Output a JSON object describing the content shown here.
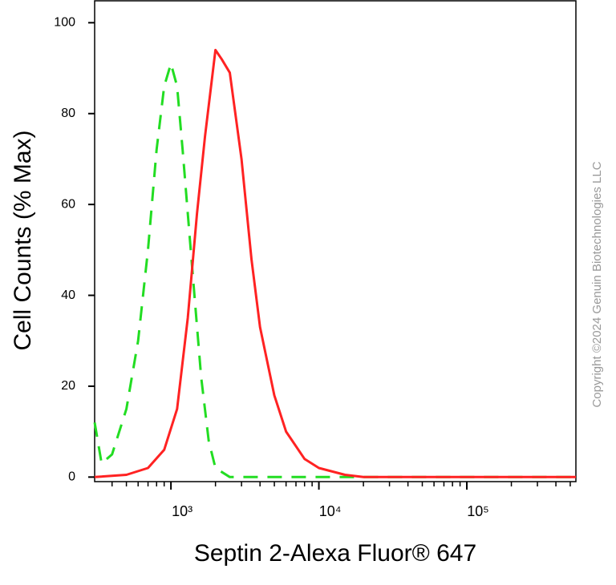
{
  "chart_data": {
    "type": "line",
    "y_label": "Cell Counts (% Max)",
    "x_label": "Septin 2-Alexa Fluor® 647",
    "annotations": [
      "Copyright ©2024 Genuin Biotechnologies LLC"
    ],
    "x_log": true,
    "xlim": [
      305,
      546000
    ],
    "ylim": [
      -1,
      105
    ],
    "xticks": [
      {
        "value": 1000,
        "label": "10³"
      },
      {
        "value": 10000,
        "label": "10⁴"
      },
      {
        "value": 100000,
        "label": "10⁵"
      }
    ],
    "xminorticks": [
      400,
      500,
      600,
      700,
      800,
      900,
      2000,
      3000,
      4000,
      5000,
      6000,
      7000,
      8000,
      9000,
      20000,
      30000,
      40000,
      50000,
      60000,
      70000,
      80000,
      90000,
      200000,
      300000,
      400000,
      500000
    ],
    "yticks": [
      0,
      20,
      40,
      60,
      80,
      100
    ],
    "series": [
      {
        "color": "#22dd22",
        "dashed": true,
        "x": [
          305,
          340,
          400,
          500,
          600,
          700,
          800,
          900,
          1000,
          1100,
          1200,
          1400,
          1600,
          1800,
          2000,
          2500,
          3000,
          10000,
          100000,
          546000
        ],
        "values": [
          12,
          3,
          5,
          15,
          30,
          50,
          72,
          86,
          91,
          86,
          72,
          45,
          22,
          8,
          2,
          0,
          0,
          0,
          0,
          0
        ]
      },
      {
        "color": "#ff2222",
        "dashed": false,
        "x": [
          305,
          500,
          700,
          900,
          1100,
          1300,
          1500,
          1700,
          1900,
          2000,
          2200,
          2500,
          3000,
          3500,
          4000,
          5000,
          6000,
          8000,
          10000,
          15000,
          20000,
          546000
        ],
        "values": [
          0,
          0.5,
          2,
          6,
          15,
          35,
          58,
          75,
          88,
          94,
          92,
          89,
          70,
          48,
          33,
          18,
          10,
          4,
          2,
          0.5,
          0,
          0
        ]
      }
    ]
  }
}
